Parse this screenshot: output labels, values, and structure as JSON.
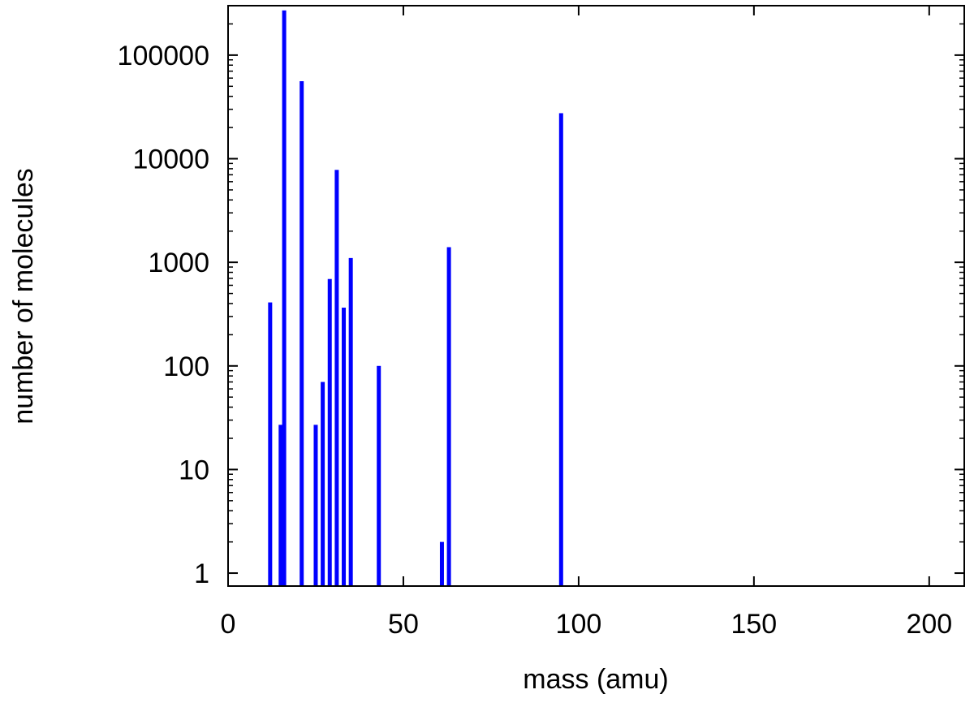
{
  "chart_data": {
    "type": "bar",
    "title": "",
    "xlabel": "mass (amu)",
    "ylabel": "number of molecules",
    "xlim": [
      0,
      210
    ],
    "ylim": [
      0.75,
      300000
    ],
    "y_scale": "log",
    "grid": false,
    "bar_color": "#0000ff",
    "x_ticks": [
      0,
      50,
      100,
      150,
      200
    ],
    "x_tick_labels": [
      "0",
      "50",
      "100",
      "150",
      "200"
    ],
    "y_ticks": [
      1,
      10,
      100,
      1000,
      10000,
      100000
    ],
    "y_tick_labels": [
      "1",
      "10",
      "100",
      "1000",
      "10000",
      "100000"
    ],
    "series": [
      {
        "x": [
          12,
          15,
          16,
          21,
          25,
          27,
          29,
          31,
          33,
          35,
          43,
          61,
          63,
          95
        ],
        "values": [
          410,
          27,
          270000,
          56000,
          27,
          70,
          690,
          7800,
          365,
          1100,
          100,
          2,
          1400,
          27500
        ]
      }
    ]
  }
}
